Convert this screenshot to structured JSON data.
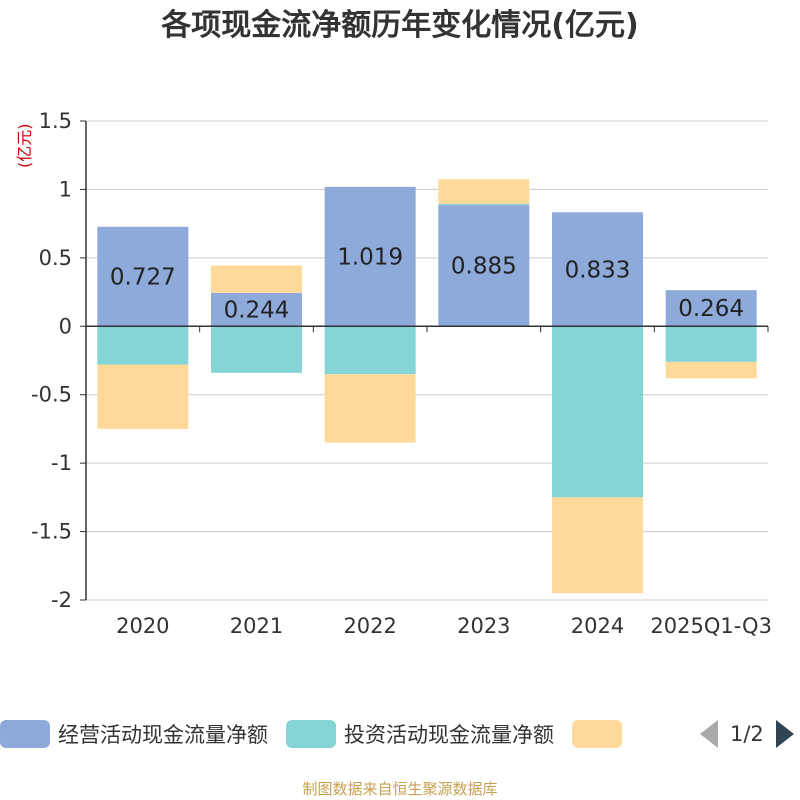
{
  "title": "各项现金流净额历年变化情况(亿元)",
  "source_note": "制图数据来自恒生聚源数据库",
  "legend_pager": "1/2",
  "chart_data": {
    "type": "bar",
    "stacked": true,
    "title": "各项现金流净额历年变化情况(亿元)",
    "ylabel": "(亿元)",
    "ylim": [
      -2,
      1.5
    ],
    "yticks": [
      1.5,
      1,
      0.5,
      0,
      -0.5,
      -1,
      -1.5,
      -2
    ],
    "grid": true,
    "categories": [
      "2020",
      "2021",
      "2022",
      "2023",
      "2024",
      "2025Q1-Q3"
    ],
    "series": [
      {
        "name": "经营活动现金流量净额",
        "color": "#8eaadb",
        "values": [
          0.727,
          0.244,
          1.019,
          0.885,
          0.833,
          0.264
        ],
        "labels": [
          "0.727",
          "0.244",
          "1.019",
          "0.885",
          "0.833",
          "0.264"
        ]
      },
      {
        "name": "投资活动现金流量净额",
        "color": "#85d4d6",
        "values": [
          -0.28,
          -0.34,
          -0.35,
          0.01,
          -1.25,
          -0.26
        ]
      },
      {
        "name": "",
        "color": "#ffd99a",
        "values": [
          -0.47,
          0.2,
          -0.5,
          0.18,
          -0.7,
          -0.12
        ]
      }
    ]
  }
}
